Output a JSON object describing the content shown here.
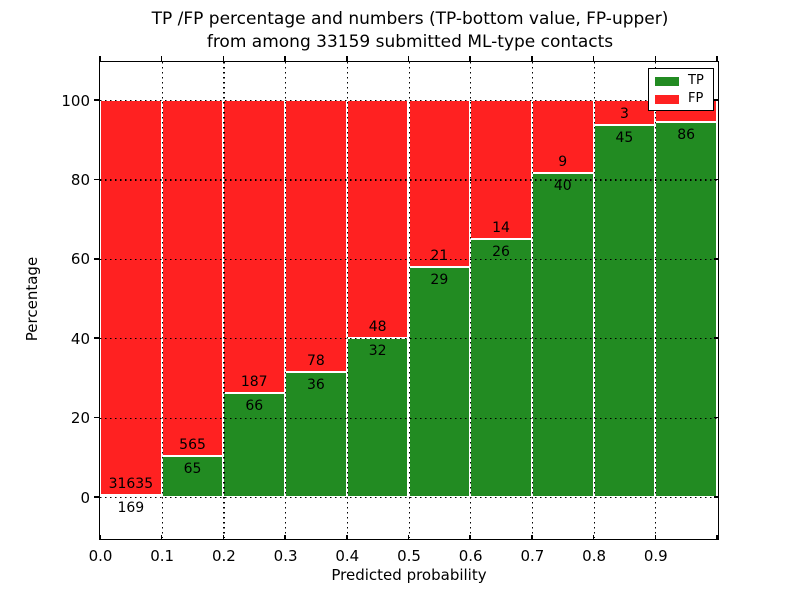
{
  "title": {
    "line1": "TP /FP percentage and numbers (TP-bottom value, FP-upper)",
    "line2": "from among 33159 submitted ML-type contacts"
  },
  "axes": {
    "ylabel": "Percentage",
    "xlabel": "Predicted probability",
    "ytick_labels": [
      "0",
      "20",
      "40",
      "60",
      "80",
      "100"
    ],
    "ytick_values": [
      0,
      20,
      40,
      60,
      80,
      100
    ],
    "xtick_labels": [
      "0.0",
      "0.1",
      "0.2",
      "0.3",
      "0.4",
      "0.5",
      "0.6",
      "0.7",
      "0.8",
      "0.9"
    ]
  },
  "legend": {
    "items": [
      {
        "label": "TP",
        "color": "#228b22"
      },
      {
        "label": "FP",
        "color": "#ff2121"
      }
    ]
  },
  "colors": {
    "tp_green": "#228b22",
    "fp_red": "#ff2121",
    "grid": "#000000",
    "background": "#ffffff"
  },
  "chart_data": {
    "type": "bar",
    "stacked": true,
    "normalized": "each bin stacked to 100%",
    "title": "TP /FP percentage and numbers (TP-bottom value, FP-upper) from among 33159 submitted ML-type contacts",
    "xlabel": "Predicted probability",
    "ylabel": "Percentage",
    "bins": [
      [
        0.0,
        0.1
      ],
      [
        0.1,
        0.2
      ],
      [
        0.2,
        0.3
      ],
      [
        0.3,
        0.4
      ],
      [
        0.4,
        0.5
      ],
      [
        0.5,
        0.6
      ],
      [
        0.6,
        0.7
      ],
      [
        0.7,
        0.8
      ],
      [
        0.8,
        0.9
      ],
      [
        0.9,
        1.0
      ]
    ],
    "xlim": [
      0,
      1
    ],
    "ylim": [
      -11,
      110
    ],
    "yticks": [
      0,
      20,
      40,
      60,
      80,
      100
    ],
    "grid": "dotted",
    "legend_position": "upper right",
    "series": [
      {
        "name": "TP",
        "color": "#228b22",
        "counts": [
          169,
          65,
          66,
          36,
          32,
          29,
          26,
          40,
          45,
          86
        ],
        "percent": [
          0.5,
          10.3,
          26.1,
          31.6,
          40.0,
          58.0,
          65.0,
          81.6,
          93.8,
          94.5
        ]
      },
      {
        "name": "FP",
        "color": "#ff2121",
        "counts": [
          31635,
          565,
          187,
          78,
          48,
          21,
          14,
          9,
          3,
          null
        ],
        "percent": [
          99.5,
          89.7,
          73.9,
          68.4,
          60.0,
          42.0,
          35.0,
          18.4,
          6.2,
          5.5
        ]
      }
    ],
    "bar_value_labels": {
      "fp": [
        "31635",
        "565",
        "187",
        "78",
        "48",
        "21",
        "14",
        "9",
        "3",
        ""
      ],
      "tp": [
        "169",
        "65",
        "66",
        "36",
        "32",
        "29",
        "26",
        "40",
        "45",
        "86"
      ]
    }
  }
}
